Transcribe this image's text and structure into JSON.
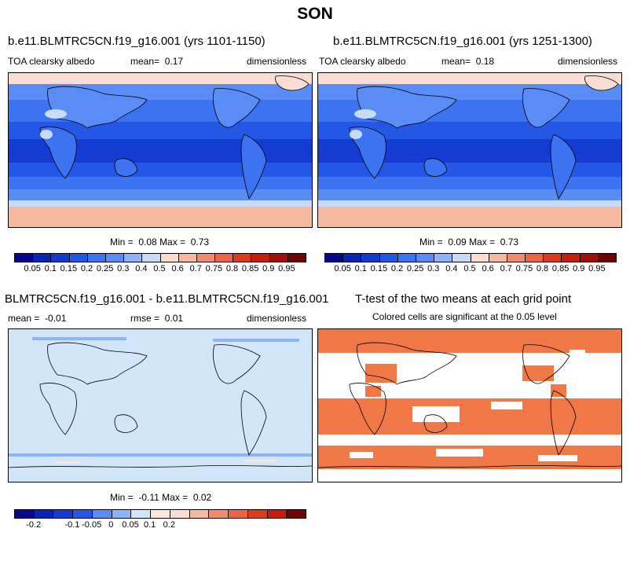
{
  "title": "SON",
  "panels": [
    {
      "title": "b.e11.BLMTRC5CN.f19_g16.001 (yrs 1101-1150)",
      "left_label": "TOA clearsky albedo",
      "mean_label": "mean=",
      "mean_value": "0.17",
      "units": "dimensionless",
      "min_label": "Min =",
      "min_value": "0.08",
      "max_label": "Max =",
      "max_value": "0.73"
    },
    {
      "title": "b.e11.BLMTRC5CN.f19_g16.001 (yrs 1251-1300)",
      "left_label": "TOA clearsky albedo",
      "mean_label": "mean=",
      "mean_value": "0.18",
      "units": "dimensionless",
      "min_label": "Min =",
      "min_value": "0.09",
      "max_label": "Max =",
      "max_value": "0.73"
    },
    {
      "title": "BLMTRC5CN.f19_g16.001 - b.e11.BLMTRC5CN.f19_g16.001",
      "mean_label": "mean =",
      "mean_value": "-0.01",
      "rmse_label": "rmse =",
      "rmse_value": "0.01",
      "units": "dimensionless",
      "min_label": "Min =",
      "min_value": "-0.11",
      "max_label": "Max =",
      "max_value": "0.02"
    },
    {
      "title": "T-test of the two means at each grid point",
      "subtitle": "Colored cells are significant at the 0.05 level"
    }
  ],
  "colorbar_abs": {
    "labels": [
      "0.05",
      "0.1",
      "0.15",
      "0.2",
      "0.25",
      "0.3",
      "0.4",
      "0.5",
      "0.6",
      "0.7",
      "0.75",
      "0.8",
      "0.85",
      "0.9",
      "0.95"
    ],
    "colors": [
      "#08088c",
      "#0a24b4",
      "#143cd2",
      "#2357e6",
      "#3c73f0",
      "#5a8cf5",
      "#8cb4fa",
      "#c8dcfa",
      "#fadcd2",
      "#f5b9a0",
      "#f08c6e",
      "#eb6446",
      "#dc3c1e",
      "#c31e0f",
      "#a00f0a",
      "#6e0505"
    ]
  },
  "colorbar_diff": {
    "labels": [
      "-0.2",
      "-0.1",
      "-0.05",
      "0",
      "0.05",
      "0.1",
      "0.2"
    ],
    "label_positions": [
      1,
      3,
      4,
      5,
      6,
      7,
      8
    ],
    "colors": [
      "#08088c",
      "#0a24b4",
      "#143cd2",
      "#2357e6",
      "#5a8cf5",
      "#8cb4fa",
      "#d2e6fa",
      "#fae6dc",
      "#fadcd2",
      "#f5b9a0",
      "#f08c6e",
      "#eb6446",
      "#dc3c1e",
      "#c31e0f",
      "#6e0505"
    ]
  }
}
